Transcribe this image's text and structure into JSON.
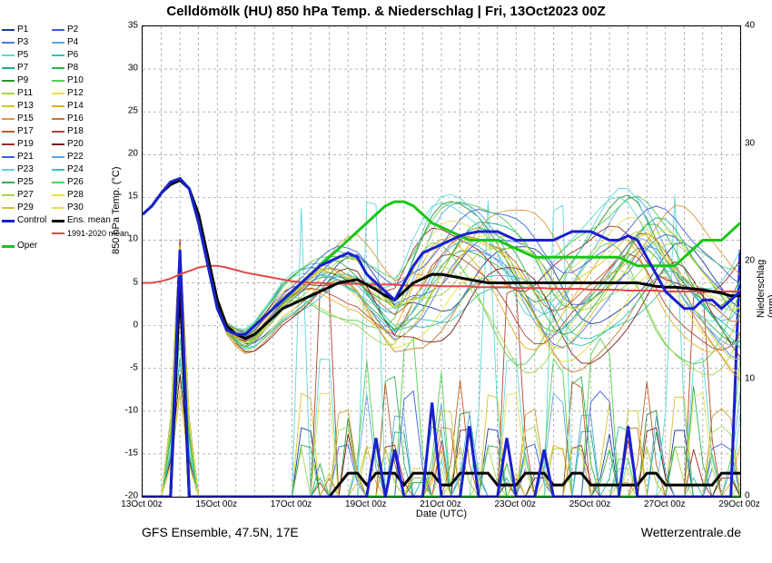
{
  "title": "Celldömölk  (HU)  850 hPa Temp. & Niederschlag | Fri, 13Oct2023 00Z",
  "footer_left": "GFS Ensemble, 47.5N, 17E",
  "footer_right": "Wetterzentrale.de",
  "x_axis": {
    "label": "Date (UTC)",
    "min_step": 0,
    "max_step": 64,
    "ticks": [
      {
        "pos": 0,
        "label": "13Oct 00z"
      },
      {
        "pos": 8,
        "label": "15Oct 00z"
      },
      {
        "pos": 16,
        "label": "17Oct 00z"
      },
      {
        "pos": 24,
        "label": "19Oct 00z"
      },
      {
        "pos": 32,
        "label": "21Oct 00z"
      },
      {
        "pos": 40,
        "label": "23Oct 00z"
      },
      {
        "pos": 48,
        "label": "25Oct 00z"
      },
      {
        "pos": 56,
        "label": "27Oct 00z"
      },
      {
        "pos": 64,
        "label": "29Oct 00z"
      }
    ],
    "minor_every": 2
  },
  "y_left": {
    "label": "850 hPa Temp. (°C)",
    "min": -20,
    "max": 35,
    "step": 5
  },
  "y_right": {
    "label": "Niederschlag (mm)",
    "min": 0,
    "max": 40,
    "step": 10
  },
  "legend": [
    {
      "name": "P1",
      "color": "#1b3a9b"
    },
    {
      "name": "P2",
      "color": "#3b5fe0"
    },
    {
      "name": "P3",
      "color": "#4b78e8"
    },
    {
      "name": "P4",
      "color": "#58a7e7"
    },
    {
      "name": "P5",
      "color": "#5fd6d6"
    },
    {
      "name": "P6",
      "color": "#2bc7b3"
    },
    {
      "name": "P7",
      "color": "#1daf88"
    },
    {
      "name": "P8",
      "color": "#2fb24c"
    },
    {
      "name": "P9",
      "color": "#2c8f2c"
    },
    {
      "name": "P10",
      "color": "#54d054"
    },
    {
      "name": "P11",
      "color": "#a2d64a"
    },
    {
      "name": "P12",
      "color": "#e6e23a"
    },
    {
      "name": "P13",
      "color": "#d1c52a"
    },
    {
      "name": "P14",
      "color": "#e0b020"
    },
    {
      "name": "P15",
      "color": "#d79a3a"
    },
    {
      "name": "P16",
      "color": "#c97a2a"
    },
    {
      "name": "P17",
      "color": "#b86028"
    },
    {
      "name": "P18",
      "color": "#b04430"
    },
    {
      "name": "P19",
      "color": "#a02a2a"
    },
    {
      "name": "P20",
      "color": "#7a1d1d"
    },
    {
      "name": "P21",
      "color": "#3b5fe0"
    },
    {
      "name": "P22",
      "color": "#58a7e7"
    },
    {
      "name": "P23",
      "color": "#5fd6d6"
    },
    {
      "name": "P24",
      "color": "#2bc7b3"
    },
    {
      "name": "P25",
      "color": "#2fb24c"
    },
    {
      "name": "P26",
      "color": "#54d054"
    },
    {
      "name": "P27",
      "color": "#a2d64a"
    },
    {
      "name": "P28",
      "color": "#e6e23a"
    },
    {
      "name": "P29",
      "color": "#d1c52a"
    },
    {
      "name": "P30",
      "color": "#e0e055"
    }
  ],
  "special_legend": [
    {
      "name": "Control",
      "color": "#1a1fcf",
      "width": 3
    },
    {
      "name": "Ens. mean",
      "color": "#000000",
      "width": 3
    },
    {
      "name": "Oper",
      "color": "#19c619",
      "width": 3
    },
    {
      "name": "1991-2020 mean",
      "color": "#e04848",
      "width": 2
    }
  ],
  "climate_mean": {
    "color": "#e04848",
    "width": 2,
    "y": [
      5.0,
      5.0,
      5.2,
      5.5,
      6.0,
      6.4,
      6.8,
      7.0,
      7.0,
      6.8,
      6.5,
      6.2,
      6.0,
      5.8,
      5.6,
      5.4,
      5.2,
      5.1,
      5.0,
      5.0,
      4.9,
      4.9,
      4.9,
      4.9,
      4.8,
      4.8,
      4.8,
      4.8,
      4.7,
      4.7,
      4.7,
      4.7,
      4.6,
      4.6,
      4.6,
      4.6,
      4.5,
      4.5,
      4.5,
      4.5,
      4.4,
      4.4,
      4.4,
      4.4,
      4.3,
      4.3,
      4.3,
      4.3,
      4.2,
      4.2,
      4.2,
      4.2,
      4.1,
      4.1,
      4.1,
      4.1,
      4.0,
      4.0,
      4.0,
      4.0,
      4.0,
      4.0,
      4.0,
      4.0,
      4.0
    ]
  },
  "ens_mean_temp": {
    "color": "#000000",
    "width": 3,
    "y": [
      13,
      14,
      15.5,
      16.5,
      17,
      16,
      13,
      8,
      3,
      0,
      -1,
      -1.5,
      -1,
      0,
      1,
      2,
      2.5,
      3,
      3.5,
      4,
      4.5,
      5,
      5.2,
      5.4,
      4.8,
      4.2,
      3.5,
      3,
      4,
      5,
      5.5,
      6,
      6,
      5.8,
      5.6,
      5.4,
      5.2,
      5.0,
      5.0,
      5.0,
      5.0,
      5.0,
      5.0,
      5.0,
      5.0,
      5.0,
      5.0,
      5.0,
      5.0,
      5.0,
      5.0,
      5.0,
      5.0,
      5.0,
      4.8,
      4.6,
      4.5,
      4.5,
      4.4,
      4.3,
      4.2,
      4.0,
      3.8,
      3.5,
      3.5
    ]
  },
  "control_temp": {
    "color": "#1a1fcf",
    "width": 3,
    "y": [
      13,
      14,
      15.5,
      16.8,
      17.2,
      16,
      12,
      7,
      2,
      -0.5,
      -1,
      -1,
      0,
      1,
      2,
      3,
      4,
      5,
      6,
      7,
      7.5,
      8,
      8.5,
      8,
      6,
      5,
      4,
      3,
      5,
      7,
      8.5,
      9,
      9.5,
      10,
      10.5,
      10.8,
      11,
      11,
      11,
      10.5,
      10,
      10,
      10,
      10,
      10,
      10.5,
      11,
      11,
      11,
      10.5,
      10,
      10,
      10.5,
      10,
      8,
      6,
      4,
      3,
      2,
      2,
      3,
      3,
      2,
      3,
      4
    ]
  },
  "oper_temp": {
    "color": "#19c619",
    "width": 3,
    "y": [
      13,
      14,
      15.5,
      16.8,
      17.2,
      16,
      12,
      7,
      2,
      -0.5,
      -1,
      -1,
      0,
      1,
      2,
      3,
      4,
      5,
      6,
      7,
      8,
      9,
      10,
      11,
      12,
      13,
      14,
      14.5,
      14.5,
      14,
      13,
      12,
      11.5,
      11,
      10.5,
      10,
      10,
      10,
      10,
      9.5,
      9,
      8.5,
      8,
      8,
      8,
      8,
      8,
      8,
      8,
      8,
      8,
      8,
      7.5,
      7,
      7,
      7,
      7,
      7,
      8,
      9,
      10,
      10,
      10,
      11,
      12
    ]
  },
  "member_temp_params": [
    {
      "color": "#1b3a9b",
      "amp": 3,
      "phase": 0.1,
      "bias": 0
    },
    {
      "color": "#3b5fe0",
      "amp": 2.5,
      "phase": 0.7,
      "bias": 1
    },
    {
      "color": "#4b78e8",
      "amp": 3.5,
      "phase": 1.4,
      "bias": -1
    },
    {
      "color": "#58a7e7",
      "amp": 4,
      "phase": 2.1,
      "bias": 2
    },
    {
      "color": "#5fd6d6",
      "amp": 3,
      "phase": 2.8,
      "bias": 3
    },
    {
      "color": "#2bc7b3",
      "amp": 2,
      "phase": 0.3,
      "bias": -2
    },
    {
      "color": "#1daf88",
      "amp": 3.2,
      "phase": 1.0,
      "bias": 1.5
    },
    {
      "color": "#2fb24c",
      "amp": 2.8,
      "phase": 1.7,
      "bias": -0.5
    },
    {
      "color": "#2c8f2c",
      "amp": 3.6,
      "phase": 2.4,
      "bias": 2.5
    },
    {
      "color": "#54d054",
      "amp": 4.2,
      "phase": 3.1,
      "bias": -1.5
    },
    {
      "color": "#a2d64a",
      "amp": 2.4,
      "phase": 0.5,
      "bias": 0.5
    },
    {
      "color": "#e6e23a",
      "amp": 3.1,
      "phase": 1.2,
      "bias": -2.5
    },
    {
      "color": "#d1c52a",
      "amp": 2.2,
      "phase": 1.9,
      "bias": 1.2
    },
    {
      "color": "#e0b020",
      "amp": 3.8,
      "phase": 2.6,
      "bias": -0.8
    },
    {
      "color": "#d79a3a",
      "amp": 2.9,
      "phase": 0.2,
      "bias": 2.8
    },
    {
      "color": "#c97a2a",
      "amp": 3.4,
      "phase": 0.9,
      "bias": -3
    },
    {
      "color": "#b86028",
      "amp": 2.6,
      "phase": 1.6,
      "bias": 0.8
    },
    {
      "color": "#b04430",
      "amp": 3.0,
      "phase": 2.3,
      "bias": -1.2
    },
    {
      "color": "#a02a2a",
      "amp": 2.1,
      "phase": 3.0,
      "bias": 1.8
    },
    {
      "color": "#7a1d1d",
      "amp": 3.7,
      "phase": 0.4,
      "bias": -2.2
    },
    {
      "color": "#3b5fe0",
      "amp": 2.3,
      "phase": 1.1,
      "bias": 3.2
    },
    {
      "color": "#58a7e7",
      "amp": 3.3,
      "phase": 1.8,
      "bias": -0.3
    },
    {
      "color": "#5fd6d6",
      "amp": 4.5,
      "phase": 2.5,
      "bias": 2.2
    },
    {
      "color": "#2bc7b3",
      "amp": 2.7,
      "phase": 0.6,
      "bias": -1.8
    },
    {
      "color": "#2fb24c",
      "amp": 3.9,
      "phase": 1.3,
      "bias": 0.3
    },
    {
      "color": "#54d054",
      "amp": 2.0,
      "phase": 2.0,
      "bias": 4
    },
    {
      "color": "#a2d64a",
      "amp": 3.5,
      "phase": 2.7,
      "bias": -2.8
    },
    {
      "color": "#e6e23a",
      "amp": 2.8,
      "phase": 0.8,
      "bias": 1.0
    },
    {
      "color": "#d1c52a",
      "amp": 4.0,
      "phase": 1.5,
      "bias": -0.6
    },
    {
      "color": "#e0e055",
      "amp": 2.5,
      "phase": 2.2,
      "bias": 2.0
    }
  ],
  "member_precip_params": [
    {
      "color": "#1b3a9b",
      "h": 4,
      "ph": 3
    },
    {
      "color": "#3b5fe0",
      "h": 3,
      "ph": 7
    },
    {
      "color": "#4b78e8",
      "h": 5,
      "ph": 2
    },
    {
      "color": "#58a7e7",
      "h": 6,
      "ph": 9
    },
    {
      "color": "#5fd6d6",
      "h": 8,
      "ph": 5
    },
    {
      "color": "#2bc7b3",
      "h": 3,
      "ph": 11
    },
    {
      "color": "#1daf88",
      "h": 4,
      "ph": 1
    },
    {
      "color": "#2fb24c",
      "h": 7,
      "ph": 8
    },
    {
      "color": "#2c8f2c",
      "h": 5,
      "ph": 4
    },
    {
      "color": "#54d054",
      "h": 9,
      "ph": 10
    },
    {
      "color": "#a2d64a",
      "h": 3,
      "ph": 6
    },
    {
      "color": "#e6e23a",
      "h": 4,
      "ph": 12
    },
    {
      "color": "#d1c52a",
      "h": 6,
      "ph": 3
    },
    {
      "color": "#e0b020",
      "h": 3,
      "ph": 9
    },
    {
      "color": "#d79a3a",
      "h": 5,
      "ph": 7
    },
    {
      "color": "#c97a2a",
      "h": 4,
      "ph": 2
    },
    {
      "color": "#b86028",
      "h": 7,
      "ph": 11
    },
    {
      "color": "#b04430",
      "h": 12,
      "ph": 5
    },
    {
      "color": "#a02a2a",
      "h": 3,
      "ph": 8
    },
    {
      "color": "#7a1d1d",
      "h": 4,
      "ph": 4
    },
    {
      "color": "#3b5fe0",
      "h": 6,
      "ph": 10
    },
    {
      "color": "#58a7e7",
      "h": 5,
      "ph": 1
    },
    {
      "color": "#5fd6d6",
      "h": 18,
      "ph": 6
    },
    {
      "color": "#2bc7b3",
      "h": 4,
      "ph": 12
    },
    {
      "color": "#2fb24c",
      "h": 3,
      "ph": 3
    },
    {
      "color": "#54d054",
      "h": 8,
      "ph": 9
    },
    {
      "color": "#a2d64a",
      "h": 4,
      "ph": 7
    },
    {
      "color": "#e6e23a",
      "h": 5,
      "ph": 2
    },
    {
      "color": "#d1c52a",
      "h": 3,
      "ph": 11
    },
    {
      "color": "#e0e055",
      "h": 6,
      "ph": 5
    }
  ],
  "control_precip": {
    "color": "#1a1fcf",
    "width": 3,
    "y": [
      0,
      0,
      0,
      0,
      21,
      0,
      0,
      0,
      0,
      0,
      0,
      0,
      0,
      0,
      0,
      0,
      0,
      0,
      0,
      0,
      0,
      0,
      0,
      0,
      0,
      5,
      0,
      4,
      0,
      0,
      0,
      8,
      0,
      0,
      0,
      6,
      0,
      0,
      0,
      5,
      0,
      0,
      0,
      4,
      0,
      0,
      0,
      0,
      0,
      0,
      0,
      0,
      6,
      0,
      0,
      0,
      0,
      0,
      0,
      0,
      0,
      0,
      0,
      0,
      21
    ]
  },
  "ens_mean_precip": {
    "color": "#000000",
    "width": 3,
    "y": [
      0,
      0,
      0,
      0,
      18,
      0,
      0,
      0,
      0,
      0,
      0,
      0,
      0,
      0,
      0,
      0,
      0,
      0,
      0,
      0,
      0,
      1,
      2,
      2,
      1,
      2,
      2,
      2,
      1,
      2,
      2,
      2,
      1,
      1,
      2,
      2,
      2,
      2,
      1,
      1,
      1,
      2,
      2,
      2,
      1,
      1,
      2,
      2,
      1,
      1,
      1,
      1,
      1,
      1,
      2,
      2,
      1,
      1,
      1,
      1,
      1,
      1,
      2,
      2,
      2
    ]
  },
  "oper_precip": {
    "color": "#19c619",
    "width": 3,
    "y": [
      0,
      0,
      0,
      0,
      19,
      0,
      0,
      0,
      0,
      0,
      0,
      0,
      0,
      0,
      0,
      0,
      0,
      0,
      0,
      0,
      0,
      0,
      0,
      0,
      0,
      0,
      0,
      0,
      0,
      0,
      0,
      0,
      0,
      0,
      0,
      0,
      0,
      0,
      0,
      0,
      0,
      0,
      0,
      0,
      0,
      0,
      0,
      0,
      0,
      0,
      0,
      0,
      0,
      0,
      0,
      0,
      0,
      0,
      0,
      0,
      0,
      0,
      0,
      0,
      0
    ]
  },
  "initial_precip_spike": {
    "x": 4,
    "height_mm": 22
  }
}
